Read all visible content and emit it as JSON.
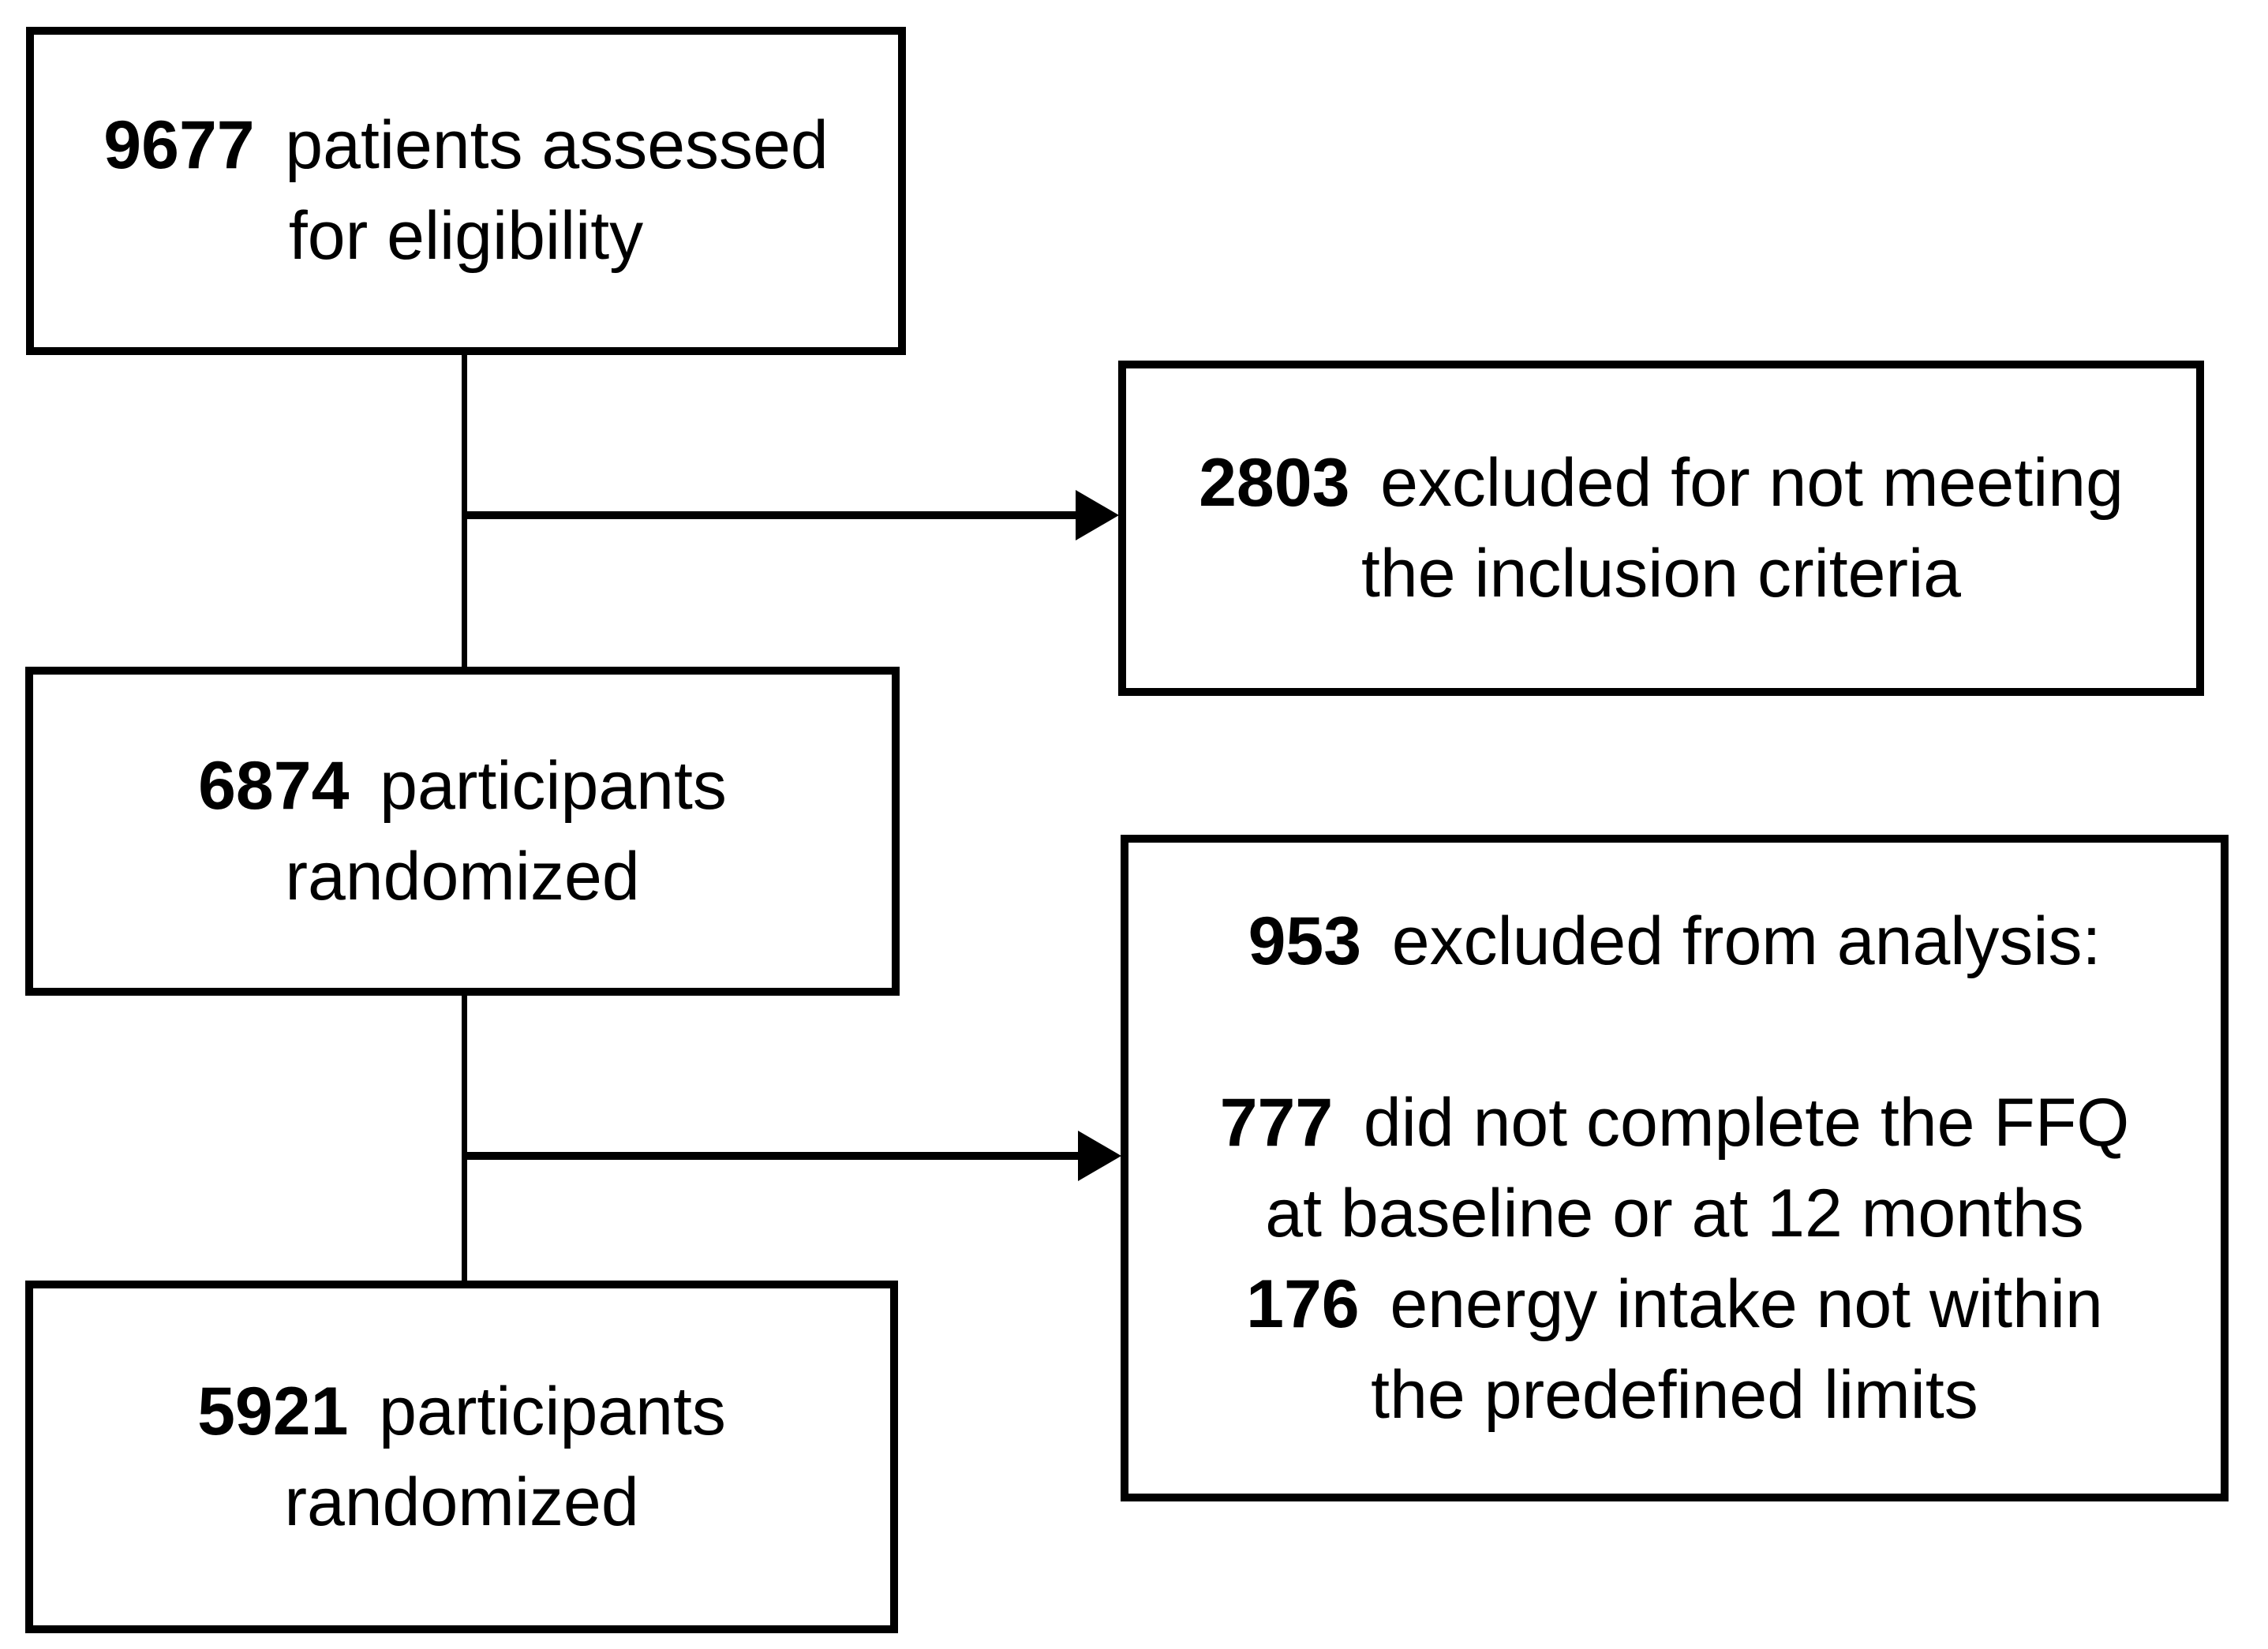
{
  "figure": {
    "type": "consort-flow-diagram",
    "background": "#ffffff",
    "line_color": "#000000",
    "text_color": "#000000"
  },
  "boxes": [
    {
      "id": "patients-assessed",
      "lines": [
        {
          "num": "9677",
          "text": "patients assessed"
        },
        {
          "text": "for eligibility"
        }
      ]
    },
    {
      "id": "excluded-not-meeting-inclusion",
      "lines": [
        {
          "num": "2803",
          "text": "excluded for not meeting"
        },
        {
          "text": "the inclusion criteria"
        }
      ]
    },
    {
      "id": "participants-randomized-6874",
      "lines": [
        {
          "num": "6874",
          "text": "participants"
        },
        {
          "text": "randomized"
        }
      ]
    },
    {
      "id": "excluded-from-analysis",
      "lines": [
        {
          "num": "953",
          "text": "excluded from analysis:"
        },
        {
          "num": "777",
          "text": "did not complete the FFQ"
        },
        {
          "text": "at baseline or at 12 months"
        },
        {
          "num": "176",
          "text": "energy intake not within"
        },
        {
          "text": "the predefined limits"
        }
      ]
    },
    {
      "id": "participants-randomized-5921",
      "lines": [
        {
          "num": "5921",
          "text": "participants"
        },
        {
          "text": "randomized"
        }
      ]
    }
  ]
}
